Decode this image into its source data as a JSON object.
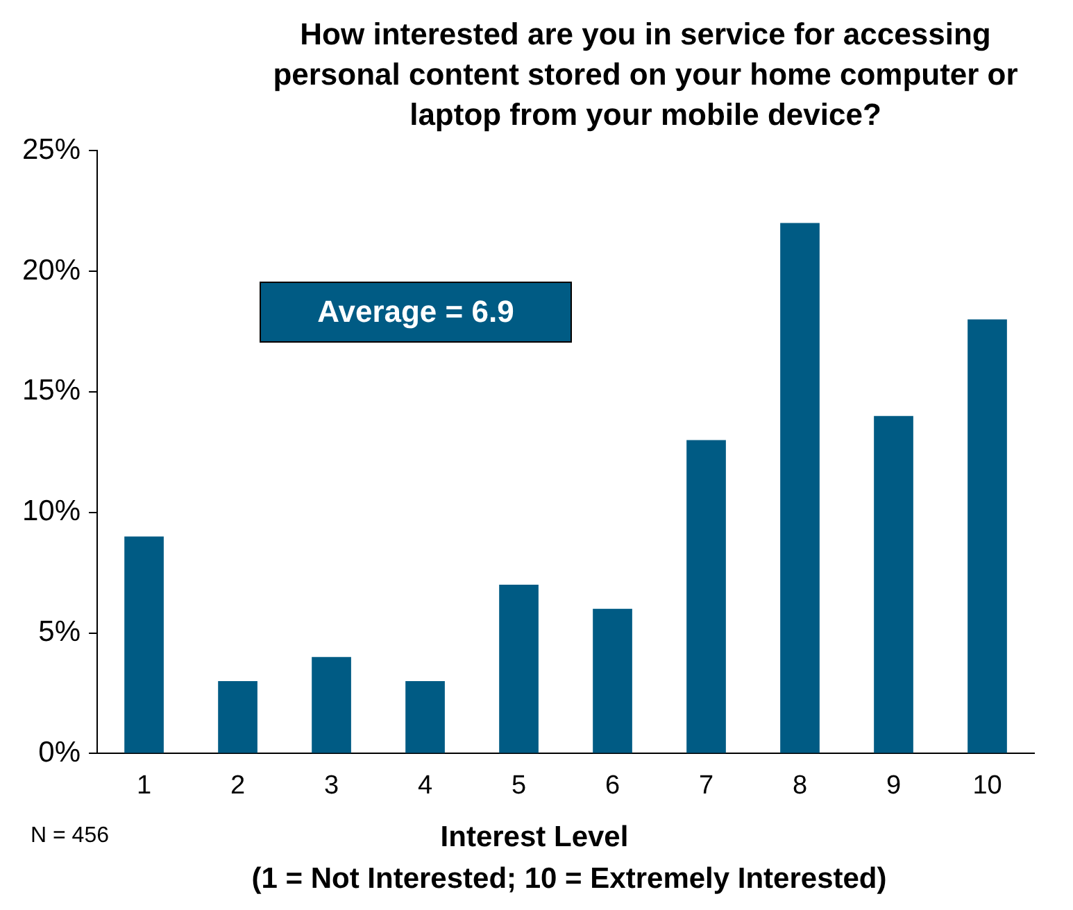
{
  "chart_data": {
    "type": "bar",
    "title": "How interested are you in service for accessing personal content stored on your home computer or laptop from your mobile device?",
    "xlabel": "Interest Level",
    "categories": [
      "1",
      "2",
      "3",
      "4",
      "5",
      "6",
      "7",
      "8",
      "9",
      "10"
    ],
    "values": [
      9,
      3,
      4,
      3,
      7,
      6,
      13,
      22,
      14,
      18
    ],
    "color": "#005b84",
    "ylim": [
      0,
      25
    ],
    "yticks": [
      {
        "value": 0,
        "label": "0%"
      },
      {
        "value": 5,
        "label": "5%"
      },
      {
        "value": 10,
        "label": "10%"
      },
      {
        "value": 15,
        "label": "15%"
      },
      {
        "value": 20,
        "label": "20%"
      },
      {
        "value": 25,
        "label": "25%"
      }
    ],
    "grid": false,
    "legend": false,
    "annotations": [
      "Average = 6.9",
      "N = 456",
      "(1 = Not Interested; 10 = Extremely Interested)"
    ]
  }
}
